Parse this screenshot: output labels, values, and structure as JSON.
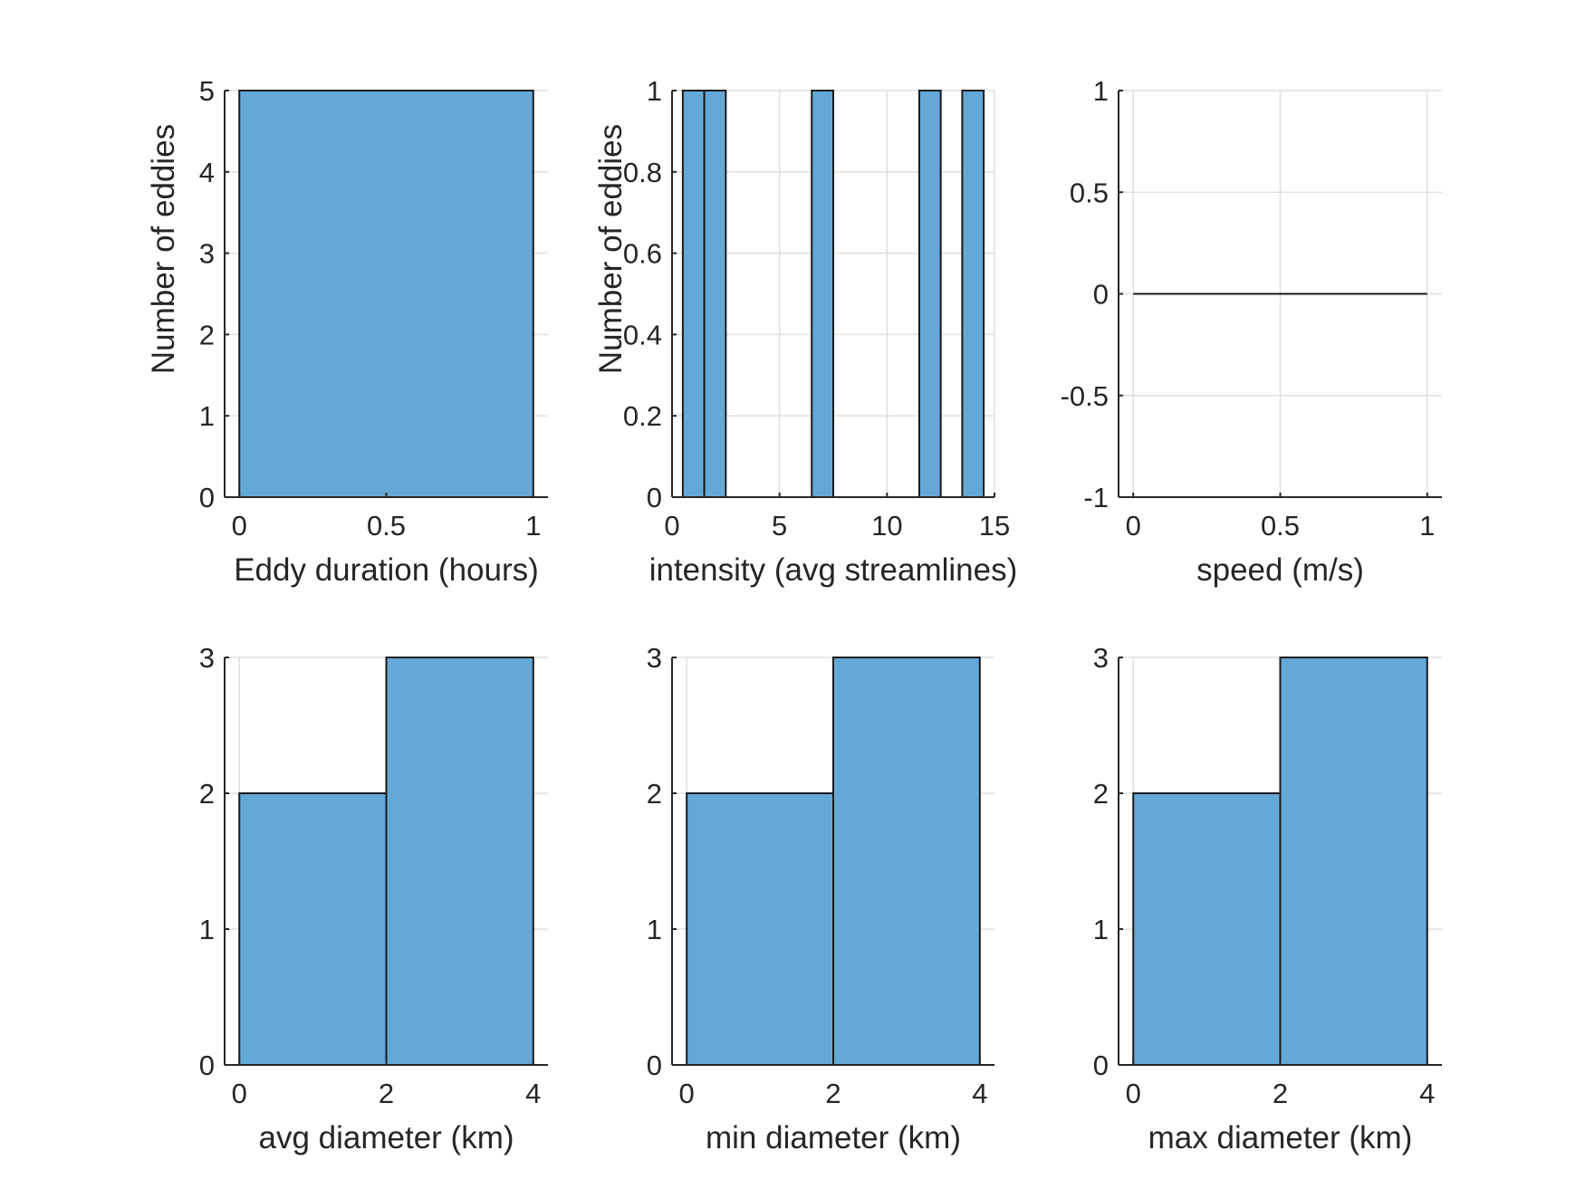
{
  "figure": {
    "background": "#ffffff",
    "bar_fill": "#64a8d6",
    "bar_edge": "#1a1a1a",
    "axis_color": "#262626",
    "grid_color": "#e0e0e0"
  },
  "chart_data": [
    {
      "type": "bar",
      "xlabel": "Eddy duration (hours)",
      "ylabel": "Number of eddies",
      "xlim": [
        -0.05,
        1.05
      ],
      "ylim": [
        0,
        5
      ],
      "xticks": [
        0,
        0.5,
        1
      ],
      "xtick_labels": [
        "0",
        "0.5",
        "1"
      ],
      "yticks": [
        0,
        1,
        2,
        3,
        4,
        5
      ],
      "ytick_labels": [
        "0",
        "1",
        "2",
        "3",
        "4",
        "5"
      ],
      "grid": true,
      "bins": [
        {
          "x0": 0,
          "x1": 1,
          "value": 5
        }
      ]
    },
    {
      "type": "bar",
      "xlabel": "intensity (avg streamlines)",
      "ylabel": "Number of eddies",
      "xlim": [
        0,
        15
      ],
      "ylim": [
        0,
        1
      ],
      "xticks": [
        0,
        5,
        10,
        15
      ],
      "xtick_labels": [
        "0",
        "5",
        "10",
        "15"
      ],
      "yticks": [
        0,
        0.2,
        0.4,
        0.6,
        0.8,
        1
      ],
      "ytick_labels": [
        "0",
        "0.2",
        "0.4",
        "0.6",
        "0.8",
        "1"
      ],
      "grid": true,
      "bins": [
        {
          "x0": 0.5,
          "x1": 1.5,
          "value": 1
        },
        {
          "x0": 1.5,
          "x1": 2.5,
          "value": 1
        },
        {
          "x0": 6.5,
          "x1": 7.5,
          "value": 1
        },
        {
          "x0": 11.5,
          "x1": 12.5,
          "value": 1
        },
        {
          "x0": 13.5,
          "x1": 14.5,
          "value": 1
        }
      ]
    },
    {
      "type": "bar",
      "xlabel": "speed (m/s)",
      "ylabel": "",
      "xlim": [
        -0.05,
        1.05
      ],
      "ylim": [
        -1,
        1
      ],
      "xticks": [
        0,
        0.5,
        1
      ],
      "xtick_labels": [
        "0",
        "0.5",
        "1"
      ],
      "yticks": [
        -1,
        -0.5,
        0,
        0.5,
        1
      ],
      "ytick_labels": [
        "-1",
        "-0.5",
        "0",
        "0.5",
        "1"
      ],
      "grid": true,
      "bins": [
        {
          "x0": 0,
          "x1": 1,
          "value": 0
        }
      ]
    },
    {
      "type": "bar",
      "xlabel": "avg diameter (km)",
      "ylabel": "",
      "xlim": [
        -0.2,
        4.2
      ],
      "ylim": [
        0,
        3
      ],
      "xticks": [
        0,
        2,
        4
      ],
      "xtick_labels": [
        "0",
        "2",
        "4"
      ],
      "yticks": [
        0,
        1,
        2,
        3
      ],
      "ytick_labels": [
        "0",
        "1",
        "2",
        "3"
      ],
      "grid": true,
      "bins": [
        {
          "x0": 0,
          "x1": 2,
          "value": 2
        },
        {
          "x0": 2,
          "x1": 4,
          "value": 3
        }
      ]
    },
    {
      "type": "bar",
      "xlabel": "min diameter (km)",
      "ylabel": "",
      "xlim": [
        -0.2,
        4.2
      ],
      "ylim": [
        0,
        3
      ],
      "xticks": [
        0,
        2,
        4
      ],
      "xtick_labels": [
        "0",
        "2",
        "4"
      ],
      "yticks": [
        0,
        1,
        2,
        3
      ],
      "ytick_labels": [
        "0",
        "1",
        "2",
        "3"
      ],
      "grid": true,
      "bins": [
        {
          "x0": 0,
          "x1": 2,
          "value": 2
        },
        {
          "x0": 2,
          "x1": 4,
          "value": 3
        }
      ]
    },
    {
      "type": "bar",
      "xlabel": "max diameter (km)",
      "ylabel": "",
      "xlim": [
        -0.2,
        4.2
      ],
      "ylim": [
        0,
        3
      ],
      "xticks": [
        0,
        2,
        4
      ],
      "xtick_labels": [
        "0",
        "2",
        "4"
      ],
      "yticks": [
        0,
        1,
        2,
        3
      ],
      "ytick_labels": [
        "0",
        "1",
        "2",
        "3"
      ],
      "grid": true,
      "bins": [
        {
          "x0": 0,
          "x1": 2,
          "value": 2
        },
        {
          "x0": 2,
          "x1": 4,
          "value": 3
        }
      ]
    }
  ]
}
